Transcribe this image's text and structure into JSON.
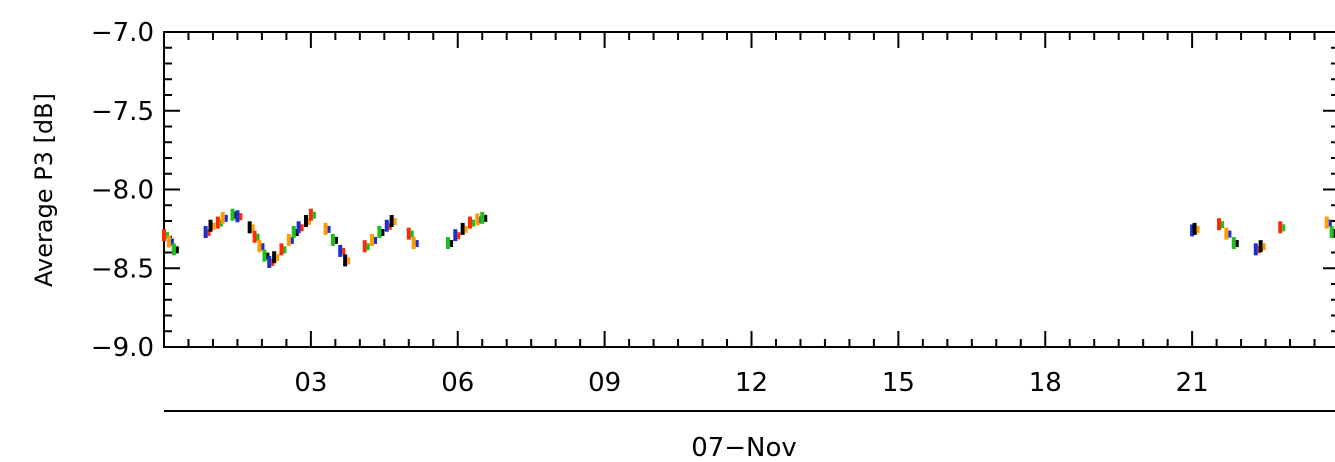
{
  "chart_data": {
    "type": "scatter",
    "title": "",
    "xlabel": "07−Nov",
    "ylabel": "Average  P3 [dB]",
    "xlim": [
      0,
      24
    ],
    "ylim": [
      -9.0,
      -7.0
    ],
    "x_ticks": [
      {
        "value": 3,
        "label": "03"
      },
      {
        "value": 6,
        "label": "06"
      },
      {
        "value": 9,
        "label": "09"
      },
      {
        "value": 12,
        "label": "12"
      },
      {
        "value": 15,
        "label": "15"
      },
      {
        "value": 18,
        "label": "18"
      },
      {
        "value": 21,
        "label": "21"
      }
    ],
    "y_ticks": [
      {
        "value": -7.0,
        "label": "−7.0"
      },
      {
        "value": -7.5,
        "label": "−7.5"
      },
      {
        "value": -8.0,
        "label": "−8.0"
      },
      {
        "value": -8.5,
        "label": "−8.5"
      },
      {
        "value": -9.0,
        "label": "−9.0"
      }
    ],
    "grid": false,
    "colors": [
      "#ff2a00",
      "#ff9a00",
      "#1fbf1f",
      "#1a2fd0",
      "#000000"
    ],
    "series": [
      {
        "values": [
          {
            "x": 0.0,
            "y": -8.29
          },
          {
            "x": 0.1,
            "y": -8.33
          },
          {
            "x": 0.2,
            "y": -8.38
          },
          {
            "x": 0.85,
            "y": -8.27
          },
          {
            "x": 0.95,
            "y": -8.23
          },
          {
            "x": 1.1,
            "y": -8.21
          },
          {
            "x": 1.2,
            "y": -8.18
          },
          {
            "x": 1.4,
            "y": -8.16
          },
          {
            "x": 1.5,
            "y": -8.17
          },
          {
            "x": 1.75,
            "y": -8.24
          },
          {
            "x": 1.85,
            "y": -8.3
          },
          {
            "x": 1.95,
            "y": -8.36
          },
          {
            "x": 2.05,
            "y": -8.42
          },
          {
            "x": 2.15,
            "y": -8.46
          },
          {
            "x": 2.25,
            "y": -8.43
          },
          {
            "x": 2.4,
            "y": -8.38
          },
          {
            "x": 2.55,
            "y": -8.32
          },
          {
            "x": 2.65,
            "y": -8.27
          },
          {
            "x": 2.75,
            "y": -8.24
          },
          {
            "x": 2.9,
            "y": -8.2
          },
          {
            "x": 3.0,
            "y": -8.16
          },
          {
            "x": 3.3,
            "y": -8.25
          },
          {
            "x": 3.45,
            "y": -8.32
          },
          {
            "x": 3.6,
            "y": -8.39
          },
          {
            "x": 3.7,
            "y": -8.45
          },
          {
            "x": 4.1,
            "y": -8.36
          },
          {
            "x": 4.25,
            "y": -8.32
          },
          {
            "x": 4.4,
            "y": -8.27
          },
          {
            "x": 4.55,
            "y": -8.23
          },
          {
            "x": 4.65,
            "y": -8.2
          },
          {
            "x": 5.0,
            "y": -8.28
          },
          {
            "x": 5.1,
            "y": -8.34
          },
          {
            "x": 5.8,
            "y": -8.34
          },
          {
            "x": 5.95,
            "y": -8.29
          },
          {
            "x": 6.1,
            "y": -8.25
          },
          {
            "x": 6.25,
            "y": -8.21
          },
          {
            "x": 6.4,
            "y": -8.19
          },
          {
            "x": 6.5,
            "y": -8.18
          },
          {
            "x": 21.0,
            "y": -8.26
          },
          {
            "x": 21.05,
            "y": -8.25
          },
          {
            "x": 21.55,
            "y": -8.22
          },
          {
            "x": 21.7,
            "y": -8.28
          },
          {
            "x": 21.85,
            "y": -8.34
          },
          {
            "x": 22.3,
            "y": -8.38
          },
          {
            "x": 22.4,
            "y": -8.36
          },
          {
            "x": 22.8,
            "y": -8.24
          },
          {
            "x": 23.75,
            "y": -8.21
          },
          {
            "x": 23.85,
            "y": -8.27
          }
        ]
      }
    ]
  }
}
